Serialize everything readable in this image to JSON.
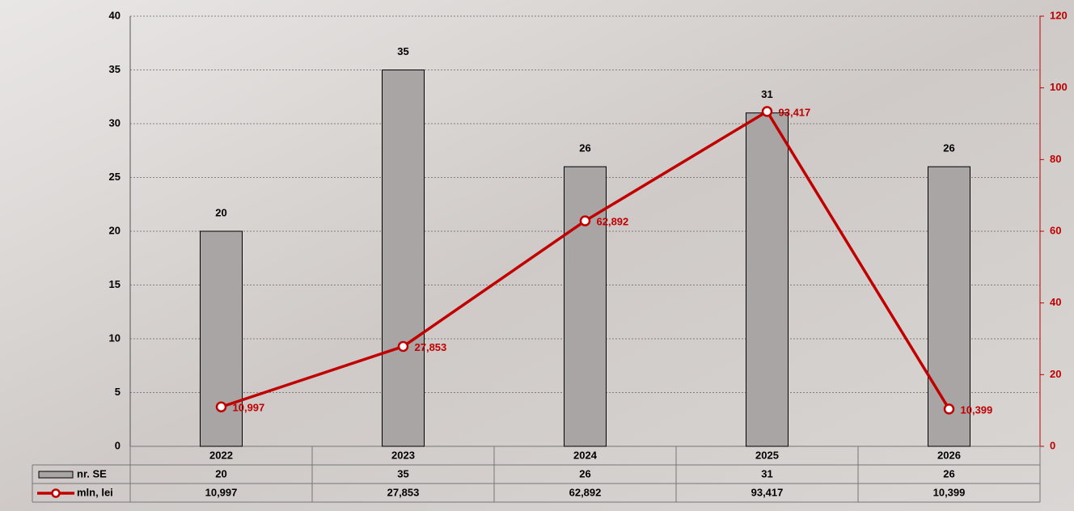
{
  "chart_data": {
    "type": "bar",
    "categories": [
      "2022",
      "2023",
      "2024",
      "2025",
      "2026"
    ],
    "series": [
      {
        "name": "nr. SE",
        "type": "bar",
        "color": "#aaa5a5",
        "values": [
          20,
          35,
          26,
          31,
          26
        ]
      },
      {
        "name": "mln, lei",
        "type": "line",
        "axis": "y2",
        "color": "#c00000",
        "values": [
          10.997,
          27.853,
          62.892,
          93.417,
          10.399
        ],
        "value_labels": [
          "10,997",
          "27,853",
          "62,892",
          "93,417",
          "10,399"
        ]
      }
    ],
    "ylim": [
      0,
      40
    ],
    "yticks": [
      0,
      5,
      10,
      15,
      20,
      25,
      30,
      35,
      40
    ],
    "y2lim": [
      0,
      120
    ],
    "y2ticks": [
      0,
      20,
      40,
      60,
      80,
      100,
      120
    ],
    "grid": true,
    "legend": "table"
  }
}
